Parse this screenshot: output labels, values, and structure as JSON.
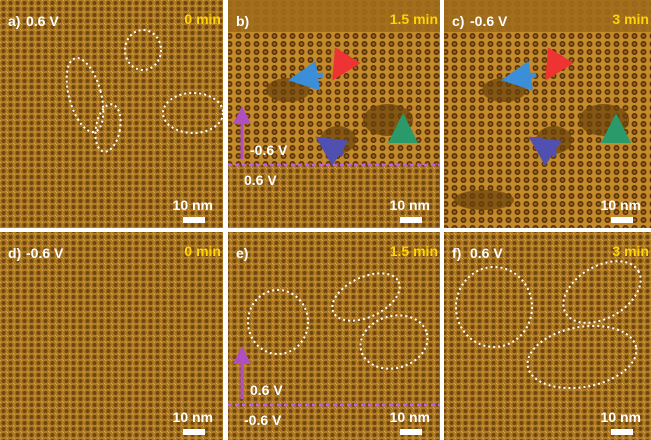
{
  "panels": [
    {
      "letter": "a)",
      "voltage": "0.6 V",
      "time": "0 min",
      "scale": "10 nm"
    },
    {
      "letter": "b)",
      "time": "1.5 min",
      "scale": "10 nm",
      "upper": "-0.6 V",
      "lower": "0.6 V"
    },
    {
      "letter": "c)",
      "voltage": "-0.6 V",
      "time": "3 min",
      "scale": "10 nm"
    },
    {
      "letter": "d)",
      "voltage": "-0.6 V",
      "time": "0 min",
      "scale": "10 nm"
    },
    {
      "letter": "e)",
      "time": "1.5 min",
      "scale": "10 nm",
      "upper": "0.6 V",
      "lower": "-0.6 V"
    },
    {
      "letter": "f)",
      "voltage": "0.6 V",
      "time": "3 min",
      "scale": "10 nm"
    }
  ]
}
